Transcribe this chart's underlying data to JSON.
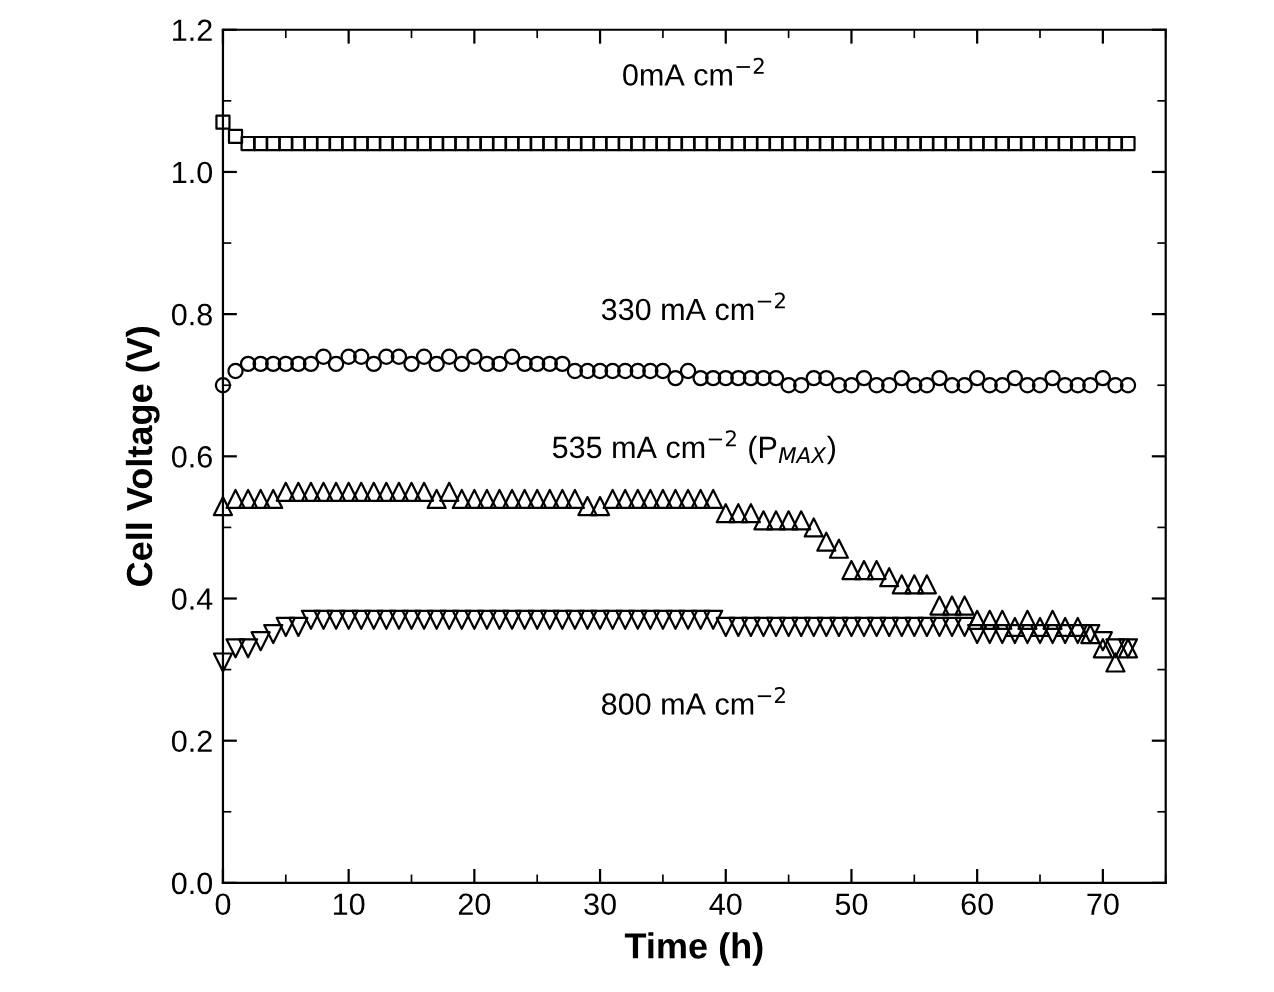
{
  "chart_data": {
    "type": "scatter",
    "xlabel": "Time (h)",
    "ylabel": "Cell Voltage (V)",
    "x": [
      0,
      1,
      2,
      3,
      4,
      5,
      6,
      7,
      8,
      9,
      10,
      11,
      12,
      13,
      14,
      15,
      16,
      17,
      18,
      19,
      20,
      21,
      22,
      23,
      24,
      25,
      26,
      27,
      28,
      29,
      30,
      31,
      32,
      33,
      34,
      35,
      36,
      37,
      38,
      39,
      40,
      41,
      42,
      43,
      44,
      45,
      46,
      47,
      48,
      49,
      50,
      51,
      52,
      53,
      54,
      55,
      56,
      57,
      58,
      59,
      60,
      61,
      62,
      63,
      64,
      65,
      66,
      67,
      68,
      69,
      70,
      71,
      72
    ],
    "series": [
      {
        "name": "0mA cm$^{−2}$",
        "color": "#000000",
        "marker": "square",
        "values": [
          1.07,
          1.05,
          1.04,
          1.04,
          1.04,
          1.04,
          1.04,
          1.04,
          1.04,
          1.04,
          1.04,
          1.04,
          1.04,
          1.04,
          1.04,
          1.04,
          1.04,
          1.04,
          1.04,
          1.04,
          1.04,
          1.04,
          1.04,
          1.04,
          1.04,
          1.04,
          1.04,
          1.04,
          1.04,
          1.04,
          1.04,
          1.04,
          1.04,
          1.04,
          1.04,
          1.04,
          1.04,
          1.04,
          1.04,
          1.04,
          1.04,
          1.04,
          1.04,
          1.04,
          1.04,
          1.04,
          1.04,
          1.04,
          1.04,
          1.04,
          1.04,
          1.04,
          1.04,
          1.04,
          1.04,
          1.04,
          1.04,
          1.04,
          1.04,
          1.04,
          1.04,
          1.04,
          1.04,
          1.04,
          1.04,
          1.04,
          1.04,
          1.04,
          1.04,
          1.04,
          1.04,
          1.04,
          1.04
        ]
      },
      {
        "name": "330 mA cm$^{−2}$",
        "color": "#000000",
        "marker": "circle",
        "values": [
          0.7,
          0.72,
          0.73,
          0.73,
          0.73,
          0.73,
          0.73,
          0.73,
          0.74,
          0.73,
          0.74,
          0.74,
          0.73,
          0.74,
          0.74,
          0.73,
          0.74,
          0.73,
          0.74,
          0.73,
          0.74,
          0.73,
          0.73,
          0.74,
          0.73,
          0.73,
          0.73,
          0.73,
          0.72,
          0.72,
          0.72,
          0.72,
          0.72,
          0.72,
          0.72,
          0.72,
          0.71,
          0.72,
          0.71,
          0.71,
          0.71,
          0.71,
          0.71,
          0.71,
          0.71,
          0.7,
          0.7,
          0.71,
          0.71,
          0.7,
          0.7,
          0.71,
          0.7,
          0.7,
          0.71,
          0.7,
          0.7,
          0.71,
          0.7,
          0.7,
          0.71,
          0.7,
          0.7,
          0.71,
          0.7,
          0.7,
          0.71,
          0.7,
          0.7,
          0.7,
          0.71,
          0.7,
          0.7
        ]
      },
      {
        "name": "535 mA cm$^{−2}$ (P$_{MAX}$)",
        "color": "#000000",
        "marker": "triangle",
        "values": [
          0.53,
          0.54,
          0.54,
          0.54,
          0.54,
          0.55,
          0.55,
          0.55,
          0.55,
          0.55,
          0.55,
          0.55,
          0.55,
          0.55,
          0.55,
          0.55,
          0.55,
          0.54,
          0.55,
          0.54,
          0.54,
          0.54,
          0.54,
          0.54,
          0.54,
          0.54,
          0.54,
          0.54,
          0.54,
          0.53,
          0.53,
          0.54,
          0.54,
          0.54,
          0.54,
          0.54,
          0.54,
          0.54,
          0.54,
          0.54,
          0.52,
          0.52,
          0.52,
          0.51,
          0.51,
          0.51,
          0.51,
          0.5,
          0.48,
          0.47,
          0.44,
          0.44,
          0.44,
          0.43,
          0.42,
          0.42,
          0.42,
          0.39,
          0.39,
          0.39,
          0.37,
          0.37,
          0.37,
          0.36,
          0.37,
          0.36,
          0.37,
          0.36,
          0.36,
          0.35,
          0.33,
          0.31,
          0.33
        ]
      },
      {
        "name": "800 mA cm$^{−2}$",
        "color": "#000000",
        "marker": "triangle_down",
        "values": [
          0.31,
          0.33,
          0.33,
          0.34,
          0.35,
          0.36,
          0.36,
          0.37,
          0.37,
          0.37,
          0.37,
          0.37,
          0.37,
          0.37,
          0.37,
          0.37,
          0.37,
          0.37,
          0.37,
          0.37,
          0.37,
          0.37,
          0.37,
          0.37,
          0.37,
          0.37,
          0.37,
          0.37,
          0.37,
          0.37,
          0.37,
          0.37,
          0.37,
          0.37,
          0.37,
          0.37,
          0.37,
          0.37,
          0.37,
          0.37,
          0.36,
          0.36,
          0.36,
          0.36,
          0.36,
          0.36,
          0.36,
          0.36,
          0.36,
          0.36,
          0.36,
          0.36,
          0.36,
          0.36,
          0.36,
          0.36,
          0.36,
          0.36,
          0.36,
          0.36,
          0.35,
          0.35,
          0.35,
          0.35,
          0.35,
          0.35,
          0.35,
          0.35,
          0.35,
          0.35,
          0.34,
          0.33,
          0.33
        ]
      }
    ],
    "xlim": [
      0,
      75
    ],
    "ylim": [
      0,
      1.2
    ],
    "xticks": [
      0,
      10,
      20,
      30,
      40,
      50,
      60,
      70
    ],
    "yticks": [
      {
        "value": 0,
        "label": "0.0"
      },
      {
        "value": 0.2,
        "label": "0.2"
      },
      {
        "value": 0.4,
        "label": "0.4"
      },
      {
        "value": 0.6,
        "label": "0.6"
      },
      {
        "value": 0.8,
        "label": "0.8"
      },
      {
        "value": 1.0,
        "label": "1.0"
      },
      {
        "value": 1.2,
        "label": "1.2"
      }
    ],
    "grid": false
  }
}
